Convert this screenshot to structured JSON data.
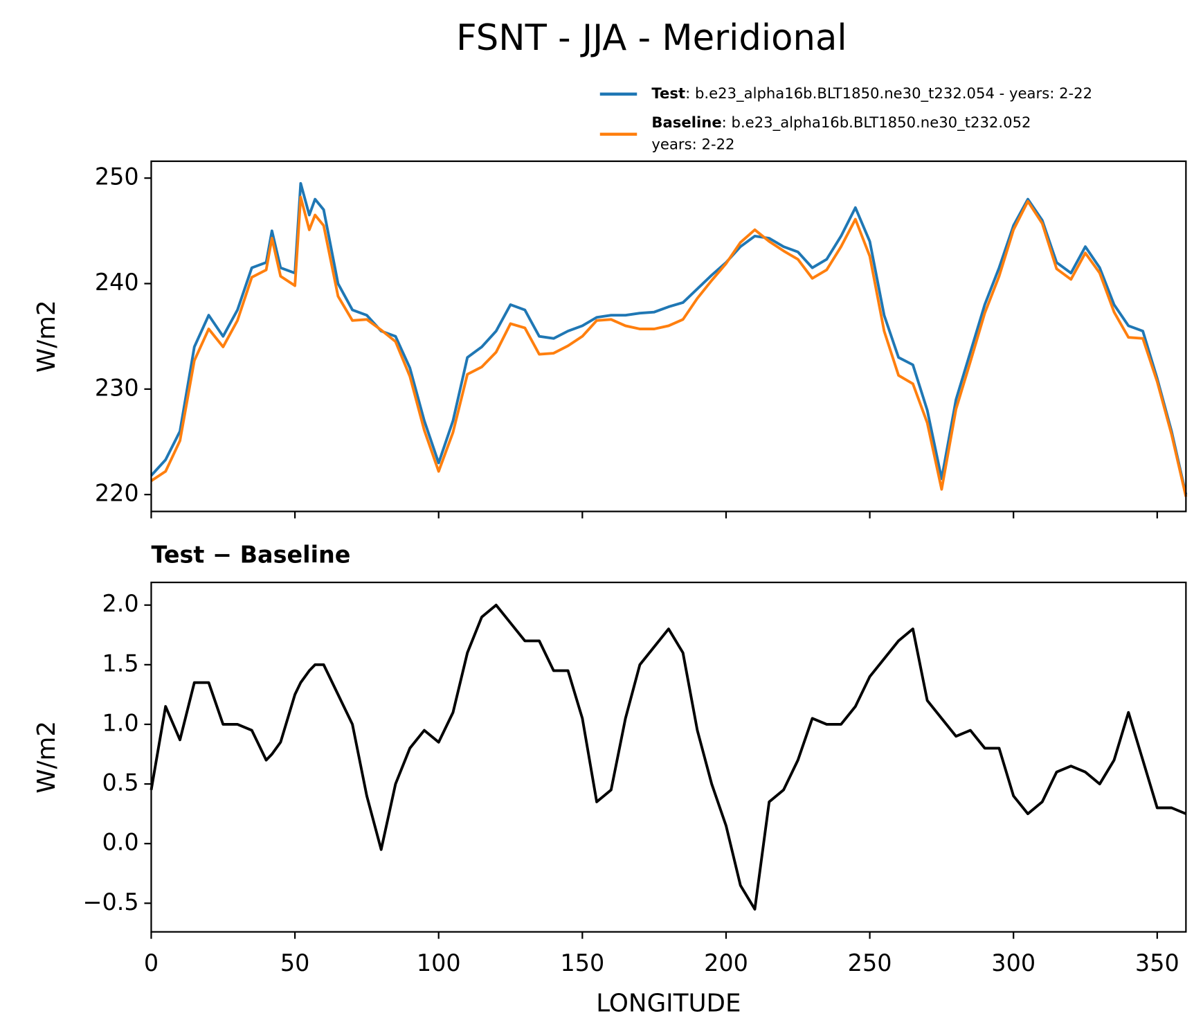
{
  "title": "FSNT - JJA - Meridional",
  "chart_data": [
    {
      "type": "line",
      "ylabel": "W/m2",
      "x": [
        0,
        5,
        10,
        15,
        20,
        25,
        30,
        35,
        40,
        42,
        45,
        50,
        52,
        55,
        57,
        60,
        65,
        70,
        75,
        80,
        85,
        90,
        95,
        100,
        105,
        110,
        115,
        120,
        125,
        130,
        135,
        140,
        145,
        150,
        155,
        160,
        165,
        170,
        175,
        180,
        185,
        190,
        195,
        200,
        205,
        210,
        215,
        220,
        225,
        230,
        235,
        240,
        245,
        250,
        255,
        260,
        265,
        270,
        275,
        280,
        285,
        290,
        295,
        300,
        305,
        310,
        315,
        320,
        325,
        330,
        335,
        340,
        345,
        350,
        355,
        360
      ],
      "series": [
        {
          "name": "Test",
          "description": [
            ": b.e23_alpha16b.BLT1850.ne30_t232.054 - years: 2-22"
          ],
          "color": "#1f77b4",
          "values": [
            221.8,
            223.3,
            226,
            234,
            237,
            235,
            237.5,
            241.5,
            242,
            245,
            241.5,
            241,
            249.5,
            246.5,
            248,
            247,
            240,
            237.5,
            237,
            235.5,
            235,
            232,
            227,
            223,
            227,
            233,
            234,
            235.5,
            238,
            237.5,
            235,
            234.8,
            235.5,
            236,
            236.8,
            237,
            237,
            237.2,
            237.3,
            237.8,
            238.2,
            239.5,
            240.8,
            242,
            243.5,
            244.5,
            244.3,
            243.5,
            243,
            241.5,
            242.3,
            244.5,
            247.2,
            244,
            237,
            233,
            232.3,
            228,
            221.5,
            229,
            233.5,
            238,
            241.5,
            245.5,
            248,
            246,
            242,
            241,
            243.5,
            241.5,
            238,
            236,
            235.5,
            231,
            226,
            220
          ]
        },
        {
          "name": "Baseline",
          "description": [
            ": b.e23_alpha16b.BLT1850.ne30_t232.052",
            "years: 2-22"
          ],
          "color": "#ff7f0e",
          "values": [
            221.3,
            222.2,
            225.1,
            232.7,
            235.7,
            234.0,
            236.5,
            240.6,
            241.3,
            244.3,
            240.7,
            239.8,
            248.2,
            245.1,
            246.5,
            245.5,
            238.8,
            236.5,
            236.6,
            235.6,
            234.5,
            231.2,
            226.1,
            222.2,
            225.9,
            231.4,
            232.1,
            233.5,
            236.2,
            235.8,
            233.3,
            233.4,
            234.1,
            235.0,
            236.5,
            236.6,
            236.0,
            235.7,
            235.7,
            236.0,
            236.6,
            238.6,
            240.3,
            241.9,
            243.9,
            245.1,
            244.0,
            243.1,
            242.3,
            240.5,
            241.3,
            243.5,
            246.1,
            242.6,
            235.5,
            231.3,
            230.5,
            226.8,
            220.5,
            228.1,
            232.6,
            237.2,
            240.7,
            245.1,
            247.8,
            245.7,
            241.4,
            240.4,
            242.9,
            241.0,
            237.3,
            234.9,
            234.8,
            230.7,
            225.7,
            219.8
          ]
        }
      ],
      "xlim": [
        0,
        360
      ],
      "xticks": [
        0,
        50,
        100,
        150,
        200,
        250,
        300,
        350
      ],
      "xticklabels": false,
      "ylim": [
        218.4,
        251.6
      ],
      "yticks": [
        220,
        230,
        240,
        250
      ],
      "legend": "upper right"
    },
    {
      "type": "line",
      "title": "Test − Baseline",
      "ylabel": "W/m2",
      "xlabel": "LONGITUDE",
      "x": [
        0,
        5,
        10,
        15,
        20,
        25,
        30,
        35,
        40,
        42,
        45,
        50,
        52,
        55,
        57,
        60,
        65,
        70,
        75,
        80,
        85,
        90,
        95,
        100,
        105,
        110,
        115,
        120,
        125,
        130,
        135,
        140,
        145,
        150,
        155,
        160,
        165,
        170,
        175,
        180,
        185,
        190,
        195,
        200,
        205,
        210,
        215,
        220,
        225,
        230,
        235,
        240,
        245,
        250,
        255,
        260,
        265,
        270,
        275,
        280,
        285,
        290,
        295,
        300,
        305,
        310,
        315,
        320,
        325,
        330,
        335,
        340,
        345,
        350,
        355,
        360
      ],
      "series": [
        {
          "color": "#000000",
          "values": [
            0.45,
            1.15,
            0.87,
            1.35,
            1.35,
            1.0,
            1.0,
            0.95,
            0.7,
            0.75,
            0.85,
            1.25,
            1.35,
            1.45,
            1.5,
            1.5,
            1.25,
            1.0,
            0.4,
            -0.05,
            0.5,
            0.8,
            0.95,
            0.85,
            1.1,
            1.6,
            1.9,
            2.0,
            1.85,
            1.7,
            1.7,
            1.45,
            1.45,
            1.05,
            0.35,
            0.45,
            1.05,
            1.5,
            1.65,
            1.8,
            1.6,
            0.95,
            0.5,
            0.15,
            -0.35,
            -0.55,
            0.35,
            0.45,
            0.7,
            1.05,
            1.0,
            1.0,
            1.15,
            1.4,
            1.55,
            1.7,
            1.8,
            1.2,
            1.05,
            0.9,
            0.95,
            0.8,
            0.8,
            0.4,
            0.25,
            0.35,
            0.6,
            0.65,
            0.6,
            0.5,
            0.7,
            1.1,
            0.7,
            0.3,
            0.3,
            0.25
          ]
        }
      ],
      "xlim": [
        0,
        360
      ],
      "xticks": [
        0,
        50,
        100,
        150,
        200,
        250,
        300,
        350
      ],
      "xticklabels": true,
      "ylim": [
        -0.74,
        2.19
      ],
      "yticks": [
        {
          "value": -0.5,
          "label": "−0.5"
        },
        {
          "value": 0,
          "label": "0.0"
        },
        {
          "value": 0.5,
          "label": "0.5"
        },
        {
          "value": 1,
          "label": "1.0"
        },
        {
          "value": 1.5,
          "label": "1.5"
        },
        {
          "value": 2,
          "label": "2.0"
        }
      ]
    }
  ]
}
